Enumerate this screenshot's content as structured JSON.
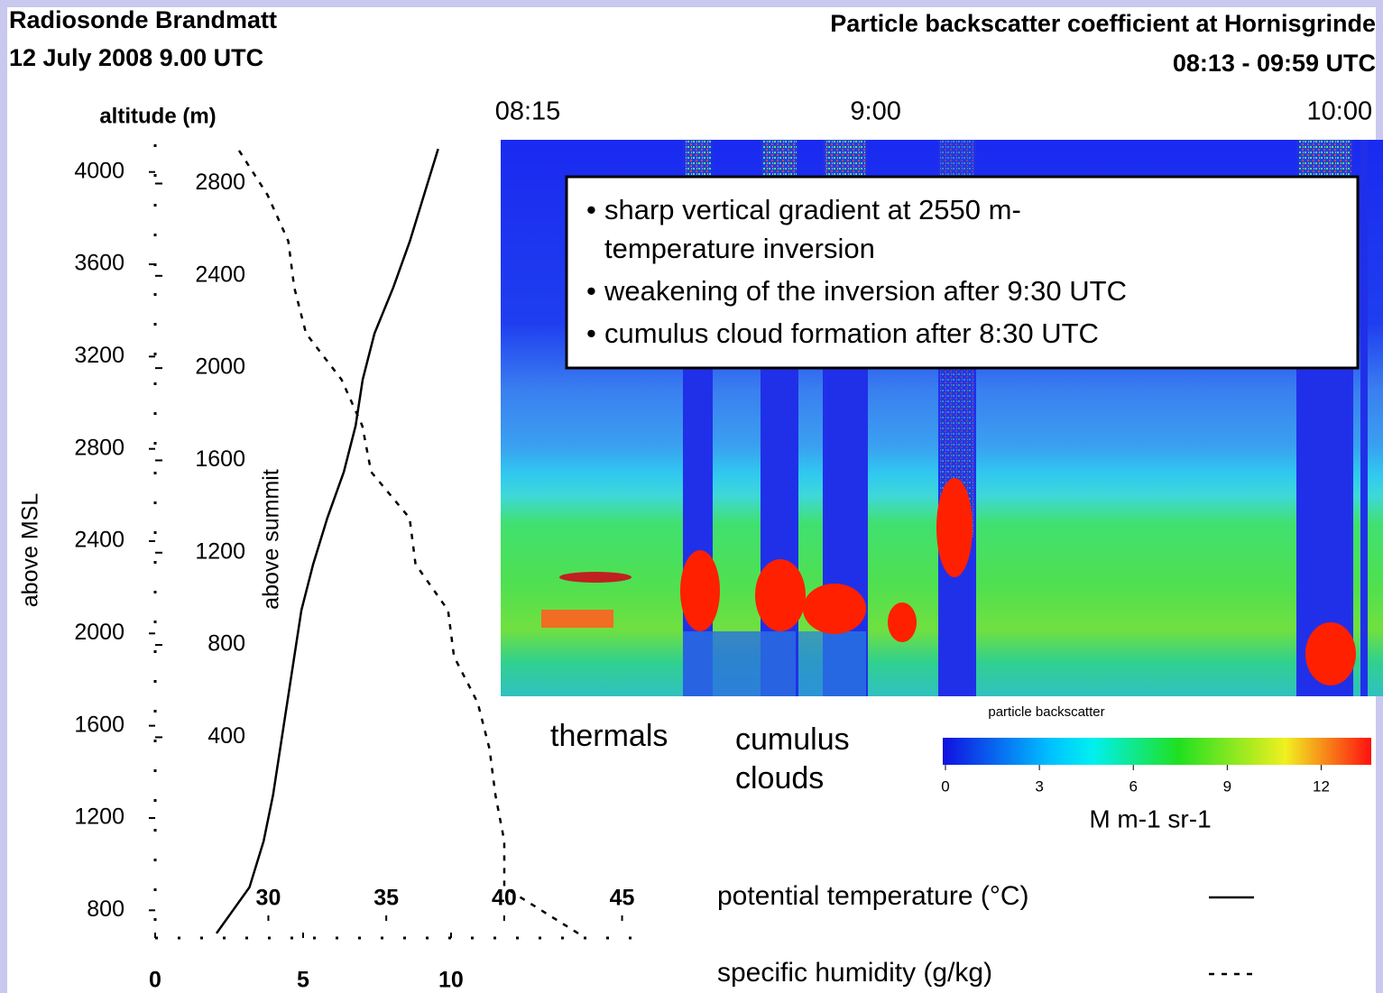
{
  "radiosonde": {
    "title": "Radiosonde Brandmatt",
    "date": "12 July 2008 9.00 UTC"
  },
  "chart_data": {
    "type": "line",
    "y_label": "altitude (m)",
    "y_title": "above MSL",
    "y2_title": "above summit",
    "y": [
      700,
      900,
      1100,
      1300,
      1500,
      1700,
      1900,
      2100,
      2300,
      2500,
      2700,
      2900,
      3100,
      3300,
      3500,
      3700,
      3900,
      4100
    ],
    "ylim": [
      680,
      4120
    ],
    "yticks": [
      800,
      1200,
      1600,
      2000,
      2400,
      2800,
      3200,
      3600,
      4000
    ],
    "y2lim": [
      -470,
      2970
    ],
    "y2ticks": [
      400,
      800,
      1200,
      1600,
      2000,
      2400,
      2800
    ],
    "xlim": [
      0,
      16.1
    ],
    "xticks": [
      0,
      5,
      10
    ],
    "x2lim": [
      25.2,
      45.4
    ],
    "x2ticks": [
      30,
      35,
      40,
      45
    ],
    "color": "#000000",
    "series": [
      {
        "name": "potential temperature (°C)",
        "axis": "x2",
        "dash": "solid",
        "values": [
          27.8,
          29.2,
          29.8,
          30.2,
          30.5,
          30.8,
          31.1,
          31.4,
          31.9,
          32.5,
          33.2,
          33.7,
          34.0,
          34.5,
          35.3,
          36.0,
          36.6,
          37.2
        ]
      },
      {
        "name": "specific humidity (g/kg)",
        "dash": "dashed",
        "values": [
          14.3,
          11.8,
          11.8,
          11.5,
          11.3,
          10.9,
          10.1,
          9.9,
          8.8,
          8.6,
          7.3,
          7.0,
          6.3,
          5.1,
          4.7,
          4.5,
          3.8,
          2.8
        ]
      }
    ]
  },
  "lidar": {
    "title": "Particle backscatter coefficient at Hornisgrinde",
    "subtitle": "08:13 - 09:59 UTC",
    "time_ticks": [
      "08:15",
      "9:00",
      "10:00"
    ],
    "annotation": [
      [
        "sharp vertical gradient at 2550 m-",
        "temperature inversion"
      ],
      [
        "weakening of the inversion after 9:30 UTC"
      ],
      [
        "cumulus cloud formation after 8:30 UTC"
      ]
    ],
    "labels": [
      "thermals",
      "cumulus",
      "clouds"
    ],
    "colorbar": {
      "title": "particle backscatter",
      "range": [
        0,
        13.6
      ],
      "ticks": [
        0,
        3,
        6,
        9,
        12
      ],
      "unit": "M m-1 sr-1"
    }
  }
}
